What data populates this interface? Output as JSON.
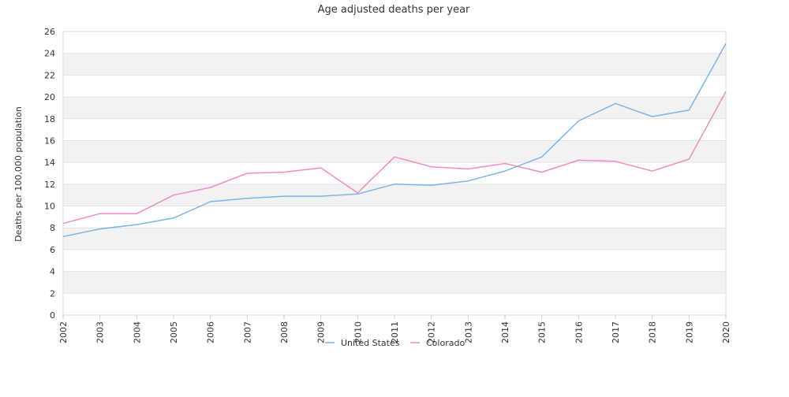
{
  "chart_data": {
    "type": "line",
    "title": "Age adjusted deaths per year",
    "xlabel": "",
    "ylabel": "Deaths per 100,000 population",
    "categories": [
      "2002",
      "2003",
      "2004",
      "2005",
      "2006",
      "2007",
      "2008",
      "2009",
      "2010",
      "2011",
      "2012",
      "2013",
      "2014",
      "2015",
      "2016",
      "2017",
      "2018",
      "2019",
      "2020"
    ],
    "series": [
      {
        "name": "United States",
        "color": "#7ab4ea",
        "values": [
          7.2,
          7.9,
          8.3,
          8.9,
          10.4,
          10.7,
          10.9,
          10.9,
          11.1,
          12.0,
          11.9,
          12.3,
          13.2,
          14.5,
          17.8,
          19.4,
          18.2,
          18.8,
          24.9
        ]
      },
      {
        "name": "Colorado",
        "color": "#f08cc0",
        "values": [
          8.4,
          9.3,
          9.3,
          11.0,
          11.7,
          13.0,
          13.1,
          13.5,
          11.2,
          14.5,
          13.6,
          13.4,
          13.9,
          13.1,
          14.2,
          14.1,
          13.2,
          14.3,
          20.5
        ]
      }
    ],
    "ylim": [
      0,
      26
    ],
    "yticks": [
      0,
      2,
      4,
      6,
      8,
      10,
      12,
      14,
      16,
      18,
      20,
      22,
      24,
      26
    ],
    "grid": "horizontal alternating bands",
    "legend": "bottom-center"
  }
}
